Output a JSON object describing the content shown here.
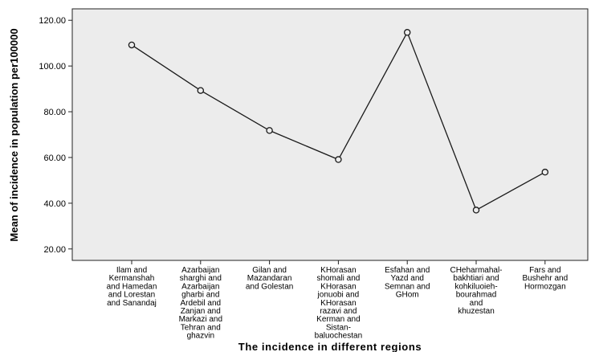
{
  "chart_data": {
    "type": "line",
    "title": "",
    "xlabel": "The incidence in different regions",
    "ylabel": "Mean of incidence in population per100000",
    "ylim": [
      15,
      125
    ],
    "yticks": [
      "20.00",
      "40.00",
      "60.00",
      "80.00",
      "100.00",
      "120.00"
    ],
    "ytick_values": [
      20,
      40,
      60,
      80,
      100,
      120
    ],
    "grid": false,
    "colors": {
      "plot_background": "#ececec",
      "line": "#1a1a1a",
      "marker_fill": "#ececec"
    },
    "categories": [
      [
        "Ilam and",
        "Kermanshah",
        "and Hamedan",
        "and Lorestan",
        "and Sanandaj"
      ],
      [
        "Azarbaijan",
        "sharghi and",
        "Azarbaijan",
        "gharbi and",
        "Ardebil and",
        "Zanjan and",
        "Markazi and",
        "Tehran and",
        "ghazvin"
      ],
      [
        "Gilan and",
        "Mazandaran",
        "and Golestan"
      ],
      [
        "KHorasan",
        "shomali and",
        "KHorasan",
        "jonuobi and",
        "KHorasan",
        "razavi and",
        "Kerman and",
        "Sistan-",
        "baluochestan"
      ],
      [
        "Esfahan and",
        "Yazd and",
        "Semnan and",
        "GHom"
      ],
      [
        "CHeharmahal-",
        "bakhtiari and",
        "kohkiluoieh-",
        "bourahmad",
        "and",
        "khuzestan"
      ],
      [
        "Fars and",
        "Bushehr and",
        "Hormozgan"
      ]
    ],
    "values": [
      109.2,
      89.3,
      71.8,
      59.1,
      114.7,
      37.0,
      53.6
    ]
  }
}
